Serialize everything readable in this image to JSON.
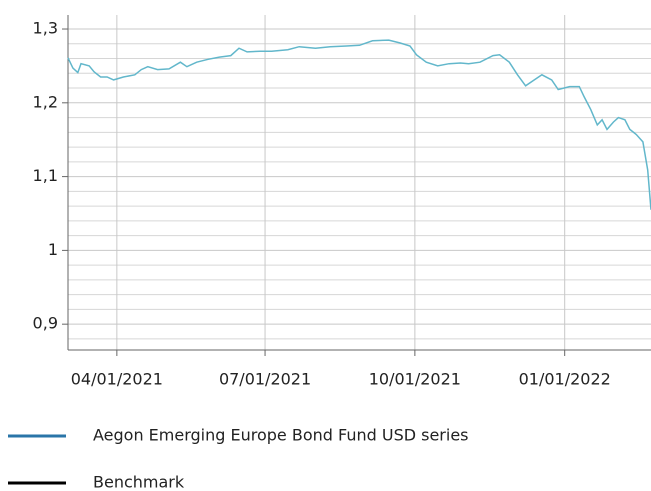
{
  "chart_data": {
    "type": "line",
    "x": [
      "03/02/2021",
      "03/05/2021",
      "03/08/2021",
      "03/10/2021",
      "03/15/2021",
      "03/18/2021",
      "03/22/2021",
      "03/26/2021",
      "03/30/2021",
      "04/05/2021",
      "04/12/2021",
      "04/16/2021",
      "04/20/2021",
      "04/26/2021",
      "05/03/2021",
      "05/10/2021",
      "05/14/2021",
      "05/20/2021",
      "05/27/2021",
      "06/03/2021",
      "06/10/2021",
      "06/15/2021",
      "06/20/2021",
      "06/28/2021",
      "07/05/2021",
      "07/15/2021",
      "07/22/2021",
      "08/01/2021",
      "08/10/2021",
      "08/20/2021",
      "08/28/2021",
      "09/05/2021",
      "09/15/2021",
      "09/22/2021",
      "09/28/2021",
      "10/02/2021",
      "10/08/2021",
      "10/15/2021",
      "10/22/2021",
      "10/29/2021",
      "11/03/2021",
      "11/10/2021",
      "11/18/2021",
      "11/22/2021",
      "11/28/2021",
      "12/03/2021",
      "12/08/2021",
      "12/12/2021",
      "12/18/2021",
      "12/24/2021",
      "12/28/2021",
      "01/04/2022",
      "01/10/2022",
      "01/13/2022",
      "01/17/2022",
      "01/21/2022",
      "01/24/2022",
      "01/27/2022",
      "01/31/2022",
      "02/03/2022",
      "02/07/2022",
      "02/10/2022",
      "02/14/2022",
      "02/18/2022",
      "02/21/2022",
      "02/23/2022"
    ],
    "series": [
      {
        "name": "Aegon Emerging Europe Bond Fund USD series",
        "color": "#62b7cb",
        "legend_color": "#2a75a8",
        "values": [
          1.261,
          1.247,
          1.241,
          1.253,
          1.25,
          1.242,
          1.235,
          1.235,
          1.231,
          1.235,
          1.238,
          1.245,
          1.249,
          1.245,
          1.246,
          1.255,
          1.249,
          1.255,
          1.259,
          1.262,
          1.264,
          1.274,
          1.269,
          1.27,
          1.27,
          1.272,
          1.276,
          1.274,
          1.276,
          1.277,
          1.278,
          1.284,
          1.285,
          1.281,
          1.277,
          1.265,
          1.255,
          1.25,
          1.253,
          1.254,
          1.253,
          1.255,
          1.264,
          1.265,
          1.255,
          1.238,
          1.223,
          1.229,
          1.238,
          1.231,
          1.218,
          1.222,
          1.222,
          1.208,
          1.191,
          1.17,
          1.177,
          1.164,
          1.174,
          1.18,
          1.177,
          1.164,
          1.157,
          1.147,
          1.109,
          1.055
        ]
      },
      {
        "name": "Benchmark",
        "color": "#000000",
        "legend_color": "#000000",
        "values": [
          null,
          null,
          null,
          null,
          null,
          null,
          null,
          null,
          null,
          null,
          null,
          null,
          null,
          null,
          null,
          null,
          null,
          null,
          null,
          null,
          null,
          null,
          null,
          null,
          null,
          null,
          null,
          null,
          null,
          null,
          null,
          null,
          null,
          null,
          null,
          null,
          null,
          null,
          null,
          null,
          null,
          null,
          null,
          null,
          null,
          null,
          null,
          null,
          null,
          null,
          null,
          null,
          null,
          null,
          null,
          null,
          null,
          null,
          null,
          null,
          null,
          null,
          null,
          null,
          null,
          null
        ]
      }
    ],
    "xlim": [
      "03/02/2021",
      "02/23/2022"
    ],
    "xticks": [
      "04/01/2021",
      "07/01/2021",
      "10/01/2021",
      "01/01/2022"
    ],
    "ylim": [
      0.865,
      1.319
    ],
    "yticks": [
      {
        "value": 0.9,
        "label": "0,9"
      },
      1,
      {
        "value": 1.1,
        "label": "1,1"
      },
      {
        "value": 1.2,
        "label": "1,2"
      },
      {
        "value": 1.3,
        "label": "1,3"
      }
    ],
    "yminor": [
      0.88,
      0.92,
      0.94,
      0.96,
      0.98,
      1.02,
      1.04,
      1.06,
      1.08,
      1.12,
      1.14,
      1.16,
      1.18,
      1.22,
      1.24,
      1.26,
      1.28,
      1.3
    ],
    "grid": true
  }
}
